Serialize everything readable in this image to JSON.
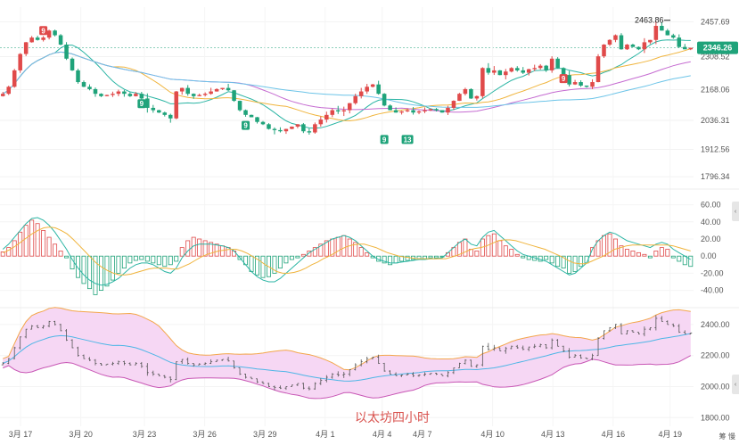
{
  "chart_data": [
    {
      "type": "candlestick",
      "panel": "price",
      "y_ticks": [
        "2457.69",
        "2308.52",
        "2168.06",
        "2036.31",
        "1912.56",
        "1796.34"
      ],
      "y_tick_values": [
        2457.69,
        2308.52,
        2168.06,
        2036.31,
        1912.56,
        1796.34
      ],
      "ylim": [
        1770,
        2520
      ],
      "current_price": "2346.26",
      "current_price_value": 2346.26,
      "high_label": "2463.86",
      "high_value": 2463.86,
      "td_markers": [
        {
          "label": "9",
          "type": "top",
          "x_index": 7,
          "y": 2420
        },
        {
          "label": "9",
          "type": "bottom",
          "x_index": 24,
          "y": 2108
        },
        {
          "label": "9",
          "type": "bottom",
          "x_index": 42,
          "y": 2015
        },
        {
          "label": "9",
          "type": "bottom",
          "x_index": 66,
          "y": 1955
        },
        {
          "label": "13",
          "type": "bottom",
          "x_index": 70,
          "y": 1955
        },
        {
          "label": "9",
          "type": "top",
          "x_index": 97,
          "y": 2215
        }
      ],
      "close": [
        2150,
        2180,
        2250,
        2320,
        2370,
        2390,
        2380,
        2390,
        2420,
        2400,
        2360,
        2300,
        2250,
        2200,
        2180,
        2170,
        2150,
        2140,
        2145,
        2150,
        2160,
        2150,
        2140,
        2150,
        2130,
        2090,
        2080,
        2070,
        2060,
        2045,
        2160,
        2175,
        2150,
        2140,
        2145,
        2150,
        2160,
        2170,
        2175,
        2165,
        2120,
        2080,
        2060,
        2050,
        2030,
        2020,
        2000,
        1995,
        1990,
        2000,
        2010,
        2020,
        1990,
        1985,
        2020,
        2040,
        2060,
        2080,
        2075,
        2080,
        2110,
        2140,
        2160,
        2180,
        2190,
        2150,
        2100,
        2080,
        2070,
        2075,
        2080,
        2070,
        2075,
        2080,
        2085,
        2080,
        2070,
        2090,
        2120,
        2150,
        2170,
        2130,
        2140,
        2260,
        2240,
        2250,
        2230,
        2245,
        2260,
        2250,
        2240,
        2255,
        2260,
        2270,
        2250,
        2300,
        2260,
        2230,
        2190,
        2200,
        2185,
        2180,
        2200,
        2310,
        2360,
        2380,
        2400,
        2340,
        2360,
        2350,
        2340,
        2370,
        2380,
        2440,
        2420,
        2400,
        2390,
        2350,
        2340,
        2346
      ],
      "panel_note": "close prices per bar, estimated"
    },
    {
      "type": "macd",
      "panel": "oscillator",
      "y_ticks": [
        "60.00",
        "40.00",
        "20.00",
        "0.00",
        "-20.00",
        "-40.00"
      ],
      "y_tick_values": [
        60,
        40,
        20,
        0,
        -20,
        -40
      ],
      "ylim": [
        -55,
        70
      ],
      "histogram": [
        5,
        10,
        18,
        28,
        36,
        42,
        38,
        30,
        22,
        14,
        6,
        -2,
        -15,
        -25,
        -32,
        -38,
        -45,
        -40,
        -35,
        -28,
        -20,
        -14,
        -8,
        -5,
        -4,
        -6,
        -8,
        -10,
        -12,
        -10,
        -6,
        10,
        18,
        22,
        20,
        18,
        16,
        14,
        12,
        10,
        6,
        -4,
        -10,
        -18,
        -22,
        -25,
        -24,
        -20,
        -14,
        -8,
        -4,
        -2,
        2,
        6,
        10,
        14,
        18,
        20,
        22,
        24,
        20,
        16,
        10,
        4,
        -2,
        -6,
        -8,
        -10,
        -8,
        -6,
        -5,
        -4,
        -3,
        -3,
        -2,
        -2,
        -1,
        4,
        10,
        16,
        20,
        8,
        6,
        20,
        24,
        26,
        18,
        12,
        8,
        2,
        -2,
        -4,
        -5,
        -6,
        -4,
        -8,
        -12,
        -14,
        -20,
        -18,
        -12,
        -8,
        10,
        18,
        24,
        26,
        20,
        12,
        8,
        6,
        4,
        2,
        -2,
        6,
        10,
        8,
        -2,
        -6,
        -10,
        -12
      ],
      "diff": [
        8,
        14,
        22,
        30,
        38,
        44,
        45,
        42,
        36,
        28,
        18,
        8,
        -4,
        -14,
        -22,
        -28,
        -32,
        -34,
        -33,
        -30,
        -26,
        -20,
        -14,
        -10,
        -8,
        -8,
        -10,
        -14,
        -18,
        -20,
        -14,
        -2,
        6,
        12,
        14,
        14,
        14,
        13,
        12,
        10,
        6,
        -2,
        -10,
        -18,
        -24,
        -28,
        -30,
        -30,
        -26,
        -20,
        -14,
        -8,
        -2,
        4,
        8,
        12,
        16,
        20,
        22,
        24,
        22,
        18,
        12,
        6,
        0,
        -4,
        -6,
        -8,
        -8,
        -7,
        -6,
        -5,
        -4,
        -4,
        -3,
        -3,
        -2,
        4,
        10,
        16,
        20,
        14,
        12,
        22,
        28,
        30,
        24,
        18,
        12,
        6,
        2,
        0,
        -2,
        -4,
        -6,
        -10,
        -14,
        -18,
        -22,
        -20,
        -14,
        -8,
        8,
        18,
        24,
        28,
        26,
        22,
        18,
        16,
        14,
        12,
        10,
        14,
        16,
        14,
        8,
        4,
        0,
        -4
      ],
      "dea": [
        4,
        7,
        11,
        16,
        21,
        26,
        30,
        33,
        34,
        33,
        30,
        26,
        20,
        13,
        6,
        -1,
        -8,
        -13,
        -17,
        -20,
        -22,
        -22,
        -21,
        -19,
        -17,
        -15,
        -14,
        -14,
        -14,
        -15,
        -15,
        -12,
        -9,
        -5,
        -1,
        2,
        4,
        6,
        7,
        8,
        8,
        6,
        3,
        -1,
        -5,
        -10,
        -14,
        -18,
        -20,
        -20,
        -19,
        -17,
        -14,
        -10,
        -7,
        -3,
        0,
        4,
        8,
        11,
        13,
        14,
        14,
        12,
        10,
        7,
        4,
        2,
        0,
        -1,
        -2,
        -3,
        -3,
        -3,
        -3,
        -3,
        -3,
        -1,
        1,
        4,
        7,
        9,
        10,
        12,
        15,
        18,
        19,
        19,
        18,
        16,
        14,
        12,
        10,
        8,
        5,
        2,
        -1,
        -5,
        -8,
        -9,
        -9,
        -6,
        -3,
        0,
        4,
        8,
        10,
        12,
        13,
        13,
        13,
        13,
        13,
        13,
        13,
        12,
        10,
        8,
        6
      ]
    },
    {
      "type": "bollinger",
      "panel": "bands",
      "y_ticks": [
        "2400.00",
        "2200.00",
        "2000.00",
        "1800.00"
      ],
      "y_tick_values": [
        2400,
        2200,
        2000,
        1800
      ],
      "ylim": [
        1790,
        2480
      ]
    }
  ],
  "x_axis": {
    "labels": [
      "3月 17",
      "3月 20",
      "3月 23",
      "3月 26",
      "3月 29",
      "4月 1",
      "4月 4",
      "4月 7",
      "4月 10",
      "4月 13",
      "4月 16",
      "4月 19"
    ],
    "label_indices": [
      4,
      22,
      41,
      59,
      77,
      95,
      112,
      124,
      145,
      163,
      181,
      198
    ]
  },
  "watermark": "以太坊四小时",
  "bottom_corner_label": "筹 慢",
  "colors": {
    "up": "#e04a4a",
    "down": "#1fa37a",
    "ma1": "#2bb5a4",
    "ma2": "#f0b43c",
    "ma3": "#c56bd1",
    "ma4": "#6cc4e8",
    "band_fill": "#f6d7f4",
    "band_upper": "#f3a64b",
    "band_lower": "#c857b5",
    "band_mid": "#4db6e6",
    "price_tag": "#1fa37a",
    "marker_top": "#e04a4a",
    "marker_bottom": "#1fa37a"
  }
}
